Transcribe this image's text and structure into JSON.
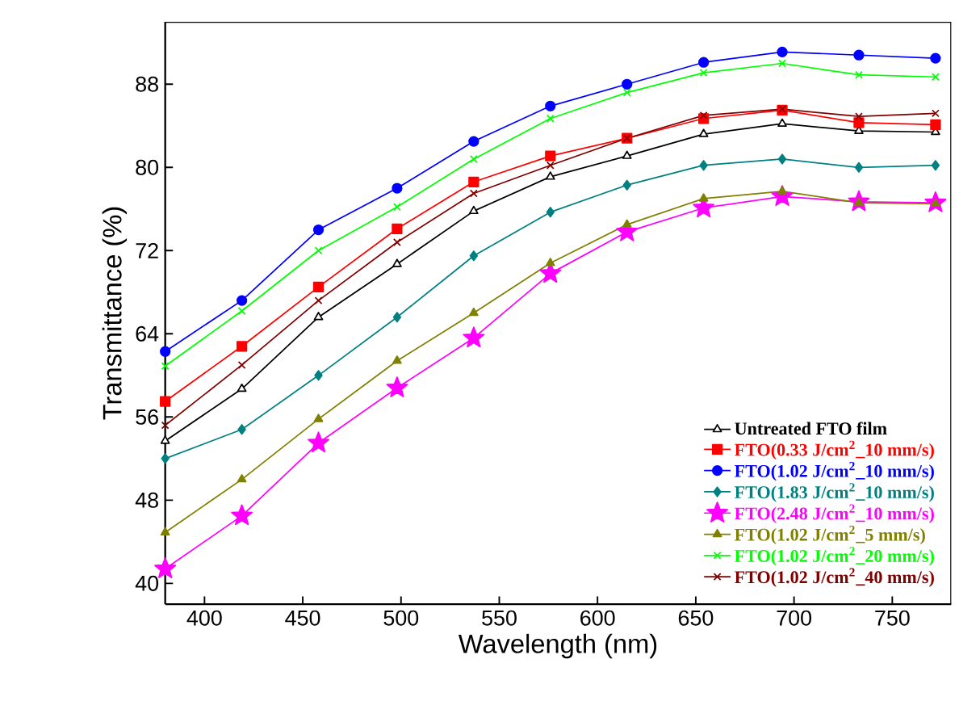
{
  "chart_data": {
    "type": "line",
    "xlabel": "Wavelength (nm)",
    "ylabel": "Transmittance (%)",
    "x": [
      380,
      419,
      458,
      498,
      537,
      576,
      615,
      654,
      694,
      733,
      772
    ],
    "xlim": [
      380,
      780
    ],
    "ylim": [
      38,
      94
    ],
    "xticks": [
      400,
      450,
      500,
      550,
      600,
      650,
      700,
      750
    ],
    "yticks": [
      40,
      48,
      56,
      64,
      72,
      80,
      88
    ],
    "grid": false,
    "legend": "bottom right",
    "series": [
      {
        "name": "Untreated FTO film",
        "color": "#000000",
        "marker": "triangle",
        "values": [
          53.7,
          58.7,
          65.6,
          70.7,
          75.8,
          79.1,
          81.1,
          83.2,
          84.2,
          83.5,
          83.4
        ]
      },
      {
        "name": "FTO(0.33 J/cm$^{2}$_10 mm/s)",
        "color": "#ff0000",
        "marker": "square",
        "values": [
          57.5,
          62.8,
          68.5,
          74.1,
          78.6,
          81.1,
          82.8,
          84.7,
          85.5,
          84.3,
          84.1
        ]
      },
      {
        "name": "FTO(1.02 J/cm$^{2}$_10 mm/s)",
        "color": "#0000ff",
        "marker": "circle",
        "values": [
          62.3,
          67.2,
          74.0,
          78.0,
          82.5,
          85.9,
          88.0,
          90.1,
          91.1,
          90.8,
          90.5
        ]
      },
      {
        "name": "FTO(1.83 J/cm$^{2}$_10 mm/s)",
        "color": "#008080",
        "marker": "diamond",
        "values": [
          52.0,
          54.8,
          60.0,
          65.6,
          71.5,
          75.7,
          78.3,
          80.2,
          80.8,
          80.0,
          80.2
        ]
      },
      {
        "name": "FTO(2.48 J/cm$^{2}$_10 mm/s)",
        "color": "#ff00ff",
        "marker": "star",
        "values": [
          41.4,
          46.5,
          53.5,
          58.8,
          63.6,
          69.8,
          73.8,
          76.1,
          77.2,
          76.7,
          76.6
        ]
      },
      {
        "name": "FTO(1.02 J/cm$^{2}$_5 mm/s)",
        "color": "#808000",
        "marker": "triangle",
        "values": [
          44.9,
          50.0,
          55.8,
          61.4,
          66.0,
          70.8,
          74.5,
          77.0,
          77.7,
          76.6,
          76.5
        ]
      },
      {
        "name": "FTO(1.02 J/cm$^{2}$_20 mm/s)",
        "color": "#00ff00",
        "marker": "cross",
        "values": [
          60.9,
          66.2,
          72.0,
          76.2,
          80.8,
          84.7,
          87.2,
          89.1,
          90.0,
          88.9,
          88.7
        ]
      },
      {
        "name": "FTO(1.02 J/cm$^{2}$_40 mm/s)",
        "color": "#800000",
        "marker": "cross",
        "values": [
          55.2,
          61.0,
          67.2,
          72.8,
          77.5,
          80.2,
          82.8,
          85.0,
          85.6,
          84.9,
          85.2
        ]
      }
    ]
  }
}
